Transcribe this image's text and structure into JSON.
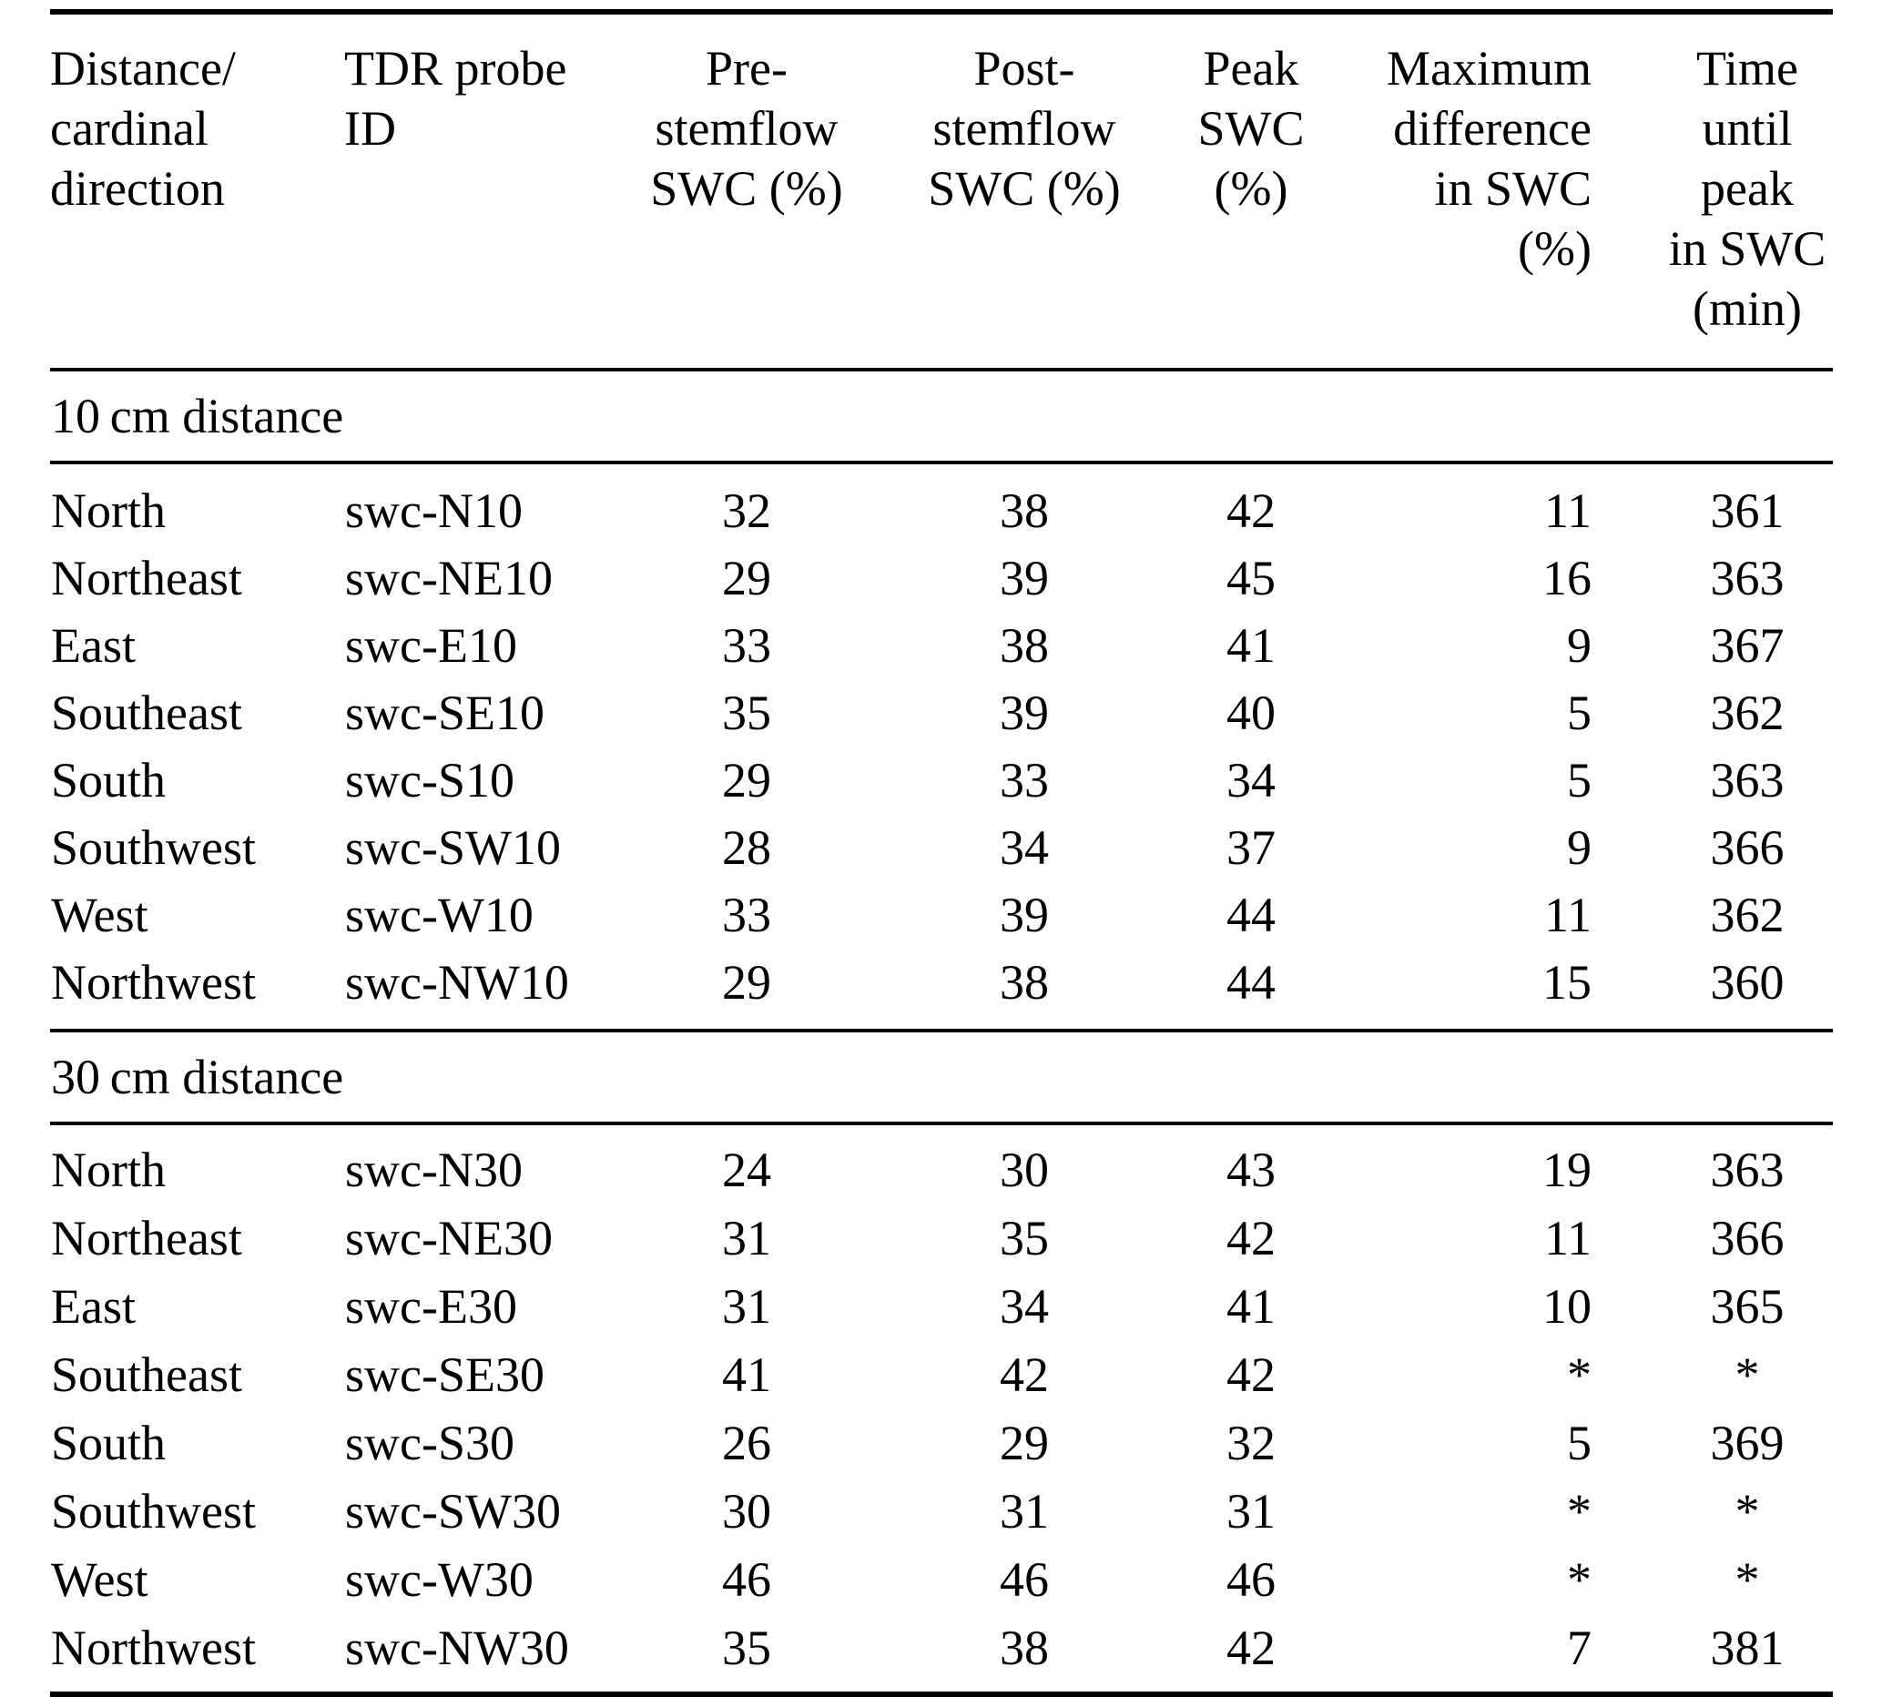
{
  "table": {
    "columns": [
      {
        "id": "direction",
        "align": "left",
        "header_lines": [
          "Distance/",
          "cardinal",
          "direction"
        ]
      },
      {
        "id": "probe",
        "align": "left",
        "header_lines": [
          "TDR probe",
          "ID"
        ]
      },
      {
        "id": "pre",
        "align": "center",
        "header_lines": [
          "Pre-",
          "stemflow",
          "SWC (%)"
        ]
      },
      {
        "id": "post",
        "align": "center",
        "header_lines": [
          "Post-",
          "stemflow",
          "SWC (%)"
        ]
      },
      {
        "id": "peak",
        "align": "center",
        "header_lines": [
          "Peak",
          "SWC",
          "(%)"
        ]
      },
      {
        "id": "maxdiff",
        "align": "right",
        "header_lines": [
          "Maximum",
          "difference",
          "in SWC",
          "(%)"
        ]
      },
      {
        "id": "time",
        "align": "center",
        "header_lines": [
          "Time",
          "until",
          "peak",
          "in SWC",
          "(min)"
        ]
      }
    ],
    "sections": [
      {
        "label": "10 cm distance",
        "rows": [
          [
            "North",
            "swc-N10",
            "32",
            "38",
            "42",
            "11",
            "361"
          ],
          [
            "Northeast",
            "swc-NE10",
            "29",
            "39",
            "45",
            "16",
            "363"
          ],
          [
            "East",
            "swc-E10",
            "33",
            "38",
            "41",
            "9",
            "367"
          ],
          [
            "Southeast",
            "swc-SE10",
            "35",
            "39",
            "40",
            "5",
            "362"
          ],
          [
            "South",
            "swc-S10",
            "29",
            "33",
            "34",
            "5",
            "363"
          ],
          [
            "Southwest",
            "swc-SW10",
            "28",
            "34",
            "37",
            "9",
            "366"
          ],
          [
            "West",
            "swc-W10",
            "33",
            "39",
            "44",
            "11",
            "362"
          ],
          [
            "Northwest",
            "swc-NW10",
            "29",
            "38",
            "44",
            "15",
            "360"
          ]
        ]
      },
      {
        "label": "30 cm distance",
        "rows": [
          [
            "North",
            "swc-N30",
            "24",
            "30",
            "43",
            "19",
            "363"
          ],
          [
            "Northeast",
            "swc-NE30",
            "31",
            "35",
            "42",
            "11",
            "366"
          ],
          [
            "East",
            "swc-E30",
            "31",
            "34",
            "41",
            "10",
            "365"
          ],
          [
            "Southeast",
            "swc-SE30",
            "41",
            "42",
            "42",
            "*",
            "*"
          ],
          [
            "South",
            "swc-S30",
            "26",
            "29",
            "32",
            "5",
            "369"
          ],
          [
            "Southwest",
            "swc-SW30",
            "30",
            "31",
            "31",
            "*",
            "*"
          ],
          [
            "West",
            "swc-W30",
            "46",
            "46",
            "46",
            "*",
            "*"
          ],
          [
            "Northwest",
            "swc-NW30",
            "35",
            "38",
            "42",
            "7",
            "381"
          ]
        ]
      }
    ]
  }
}
